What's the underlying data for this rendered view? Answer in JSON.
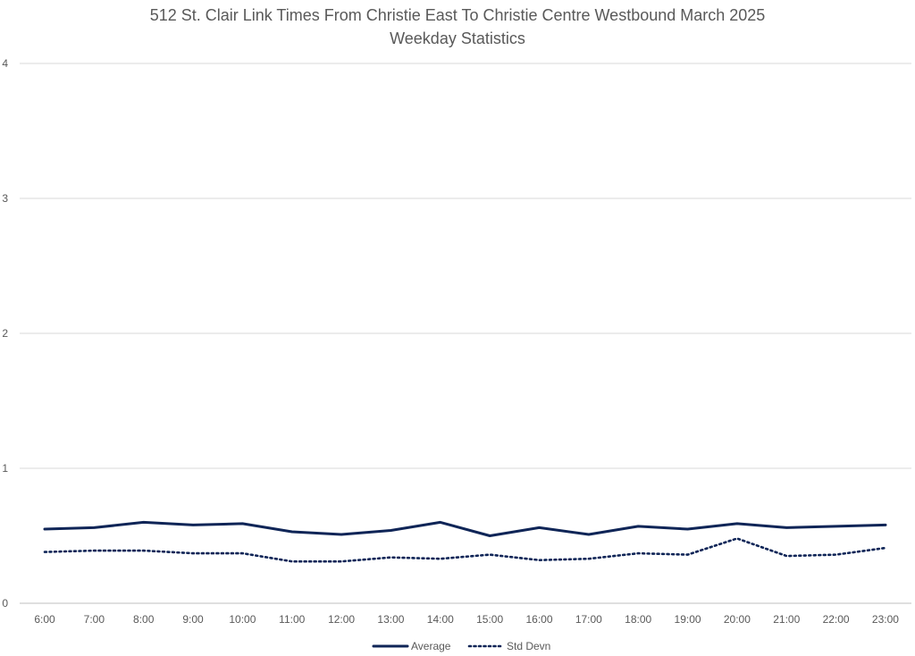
{
  "chart_data": {
    "type": "line",
    "title_line1": "512 St. Clair Link Times From Christie East To Christie Centre Westbound March 2025",
    "title_line2": "Weekday Statistics",
    "categories": [
      "6:00",
      "7:00",
      "8:00",
      "9:00",
      "10:00",
      "11:00",
      "12:00",
      "13:00",
      "14:00",
      "15:00",
      "16:00",
      "17:00",
      "18:00",
      "19:00",
      "20:00",
      "21:00",
      "22:00",
      "23:00"
    ],
    "series": [
      {
        "name": "Average",
        "style": "solid",
        "color": "#0f2557",
        "values": [
          0.55,
          0.56,
          0.6,
          0.58,
          0.59,
          0.53,
          0.51,
          0.54,
          0.6,
          0.5,
          0.56,
          0.51,
          0.57,
          0.55,
          0.59,
          0.56,
          0.57,
          0.58
        ]
      },
      {
        "name": "Std Devn",
        "style": "dotted",
        "color": "#0f2557",
        "values": [
          0.38,
          0.39,
          0.39,
          0.37,
          0.37,
          0.31,
          0.31,
          0.34,
          0.33,
          0.36,
          0.32,
          0.33,
          0.37,
          0.36,
          0.48,
          0.35,
          0.36,
          0.41
        ]
      }
    ],
    "ylim": [
      0,
      4
    ],
    "yticks": [
      0,
      1,
      2,
      3,
      4
    ],
    "grid": true,
    "legend_position": "bottom"
  }
}
